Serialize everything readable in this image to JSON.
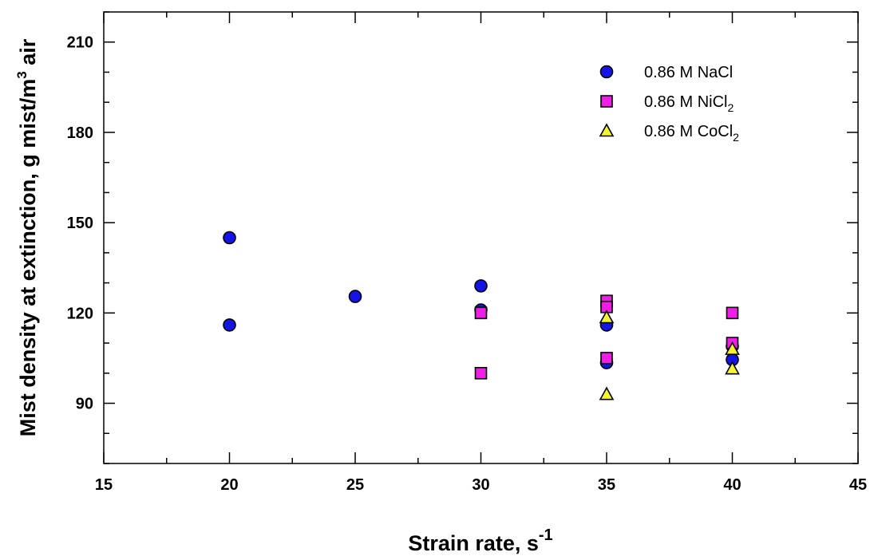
{
  "chart_data": {
    "type": "scatter",
    "title": "",
    "xlabel": {
      "base": "Strain rate, s",
      "sup": "-1"
    },
    "ylabel": {
      "part1": "Mist density at extinction, g mist/m",
      "sup": "3",
      "part2": " air"
    },
    "xlim": [
      15,
      45
    ],
    "ylim": [
      70,
      220
    ],
    "xticks": [
      15,
      20,
      25,
      30,
      35,
      40,
      45
    ],
    "yticks": [
      90,
      120,
      150,
      180,
      210
    ],
    "grid": false,
    "legend_position": "top-right",
    "series": [
      {
        "label": {
          "text": "0.86 M NaCl",
          "sub": ""
        },
        "marker": "circle",
        "color": "#1414e6",
        "points": [
          [
            20,
            145
          ],
          [
            20,
            116
          ],
          [
            25,
            125.5
          ],
          [
            30,
            129
          ],
          [
            30,
            121
          ],
          [
            35,
            116
          ],
          [
            35,
            103.5
          ],
          [
            40,
            109
          ],
          [
            40,
            104.5
          ]
        ]
      },
      {
        "label": {
          "text": "0.86 M NiCl",
          "sub": "2"
        },
        "marker": "square",
        "color": "#ee1ee6",
        "points": [
          [
            30,
            120
          ],
          [
            30,
            100
          ],
          [
            35,
            124
          ],
          [
            35,
            122
          ],
          [
            35,
            105
          ],
          [
            40,
            120
          ],
          [
            40,
            110
          ]
        ]
      },
      {
        "label": {
          "text": "0.86 M CoCl",
          "sub": "2"
        },
        "marker": "triangle",
        "color": "#f5f532",
        "points": [
          [
            35,
            118.5
          ],
          [
            35,
            93
          ],
          [
            40,
            108
          ],
          [
            40,
            101.5
          ]
        ]
      }
    ]
  }
}
